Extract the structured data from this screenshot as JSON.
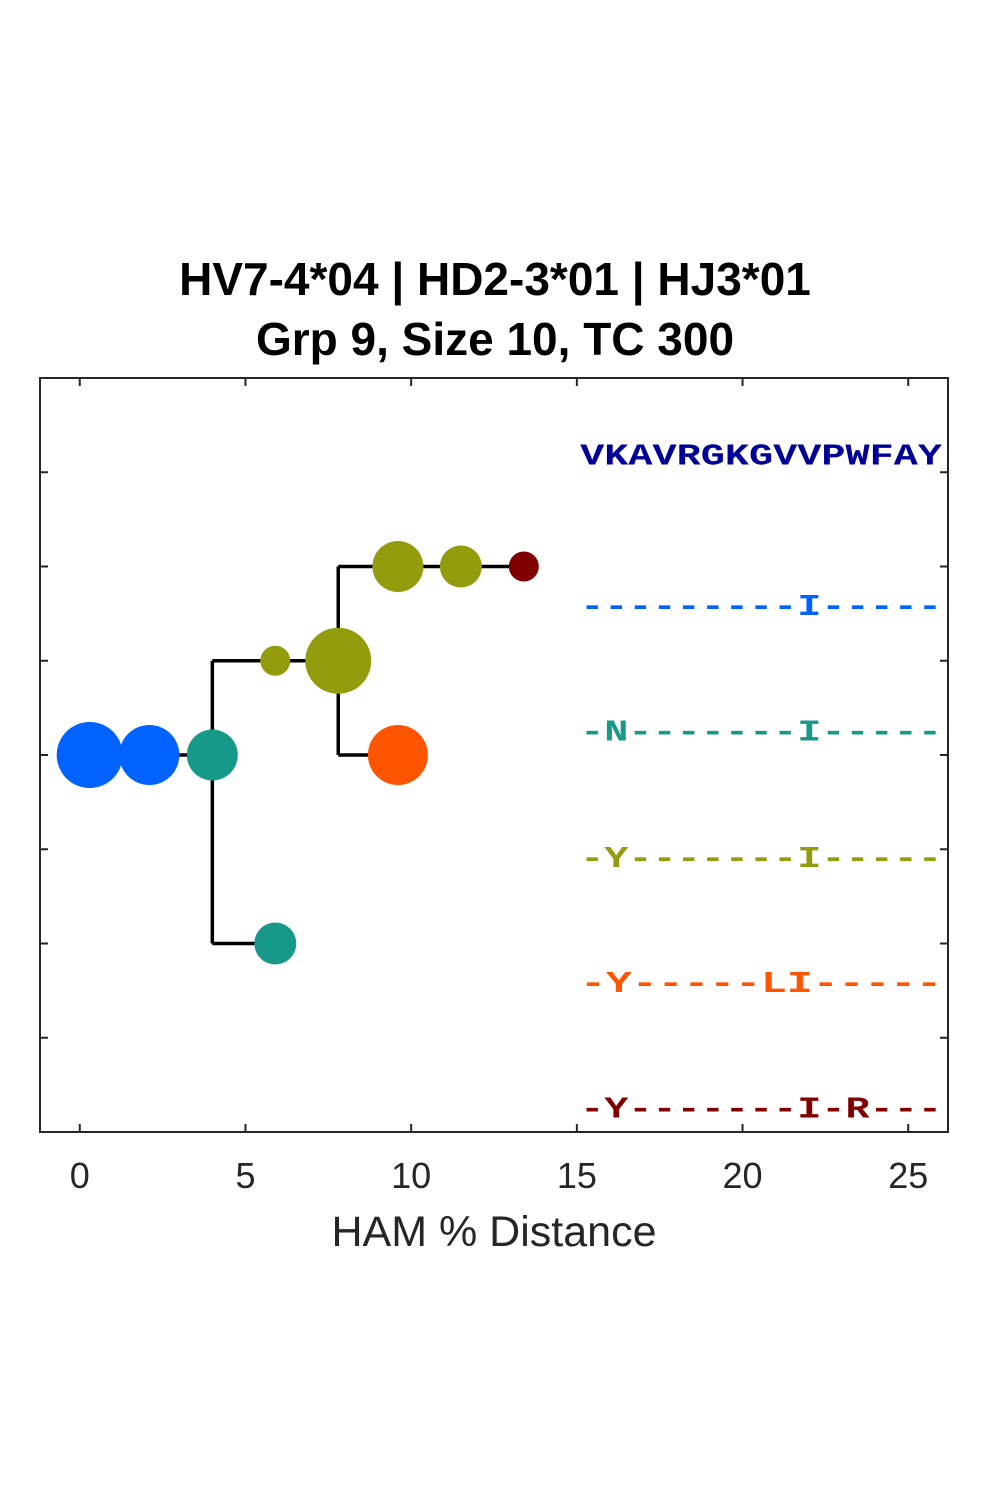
{
  "chart_data": {
    "type": "scatter",
    "title": "HV7-4*04 | HD2-3*01 | HJ3*01",
    "subtitle": "Grp 9, Size 10, TC 300",
    "xlabel": "HAM % Distance",
    "ylabel": "",
    "xlim": [
      -1.2,
      26.2
    ],
    "ylim": [
      0,
      8
    ],
    "xticks": [
      0,
      5,
      10,
      15,
      20,
      25
    ],
    "yticks": [
      1,
      2,
      3,
      4,
      5,
      6,
      7
    ],
    "grid": false,
    "nodes": [
      {
        "x": 0.3,
        "y": 4,
        "size": 2.2,
        "color": "#0063ff"
      },
      {
        "x": 2.1,
        "y": 4,
        "size": 2.0,
        "color": "#0063ff"
      },
      {
        "x": 4.0,
        "y": 4,
        "size": 1.7,
        "color": "#17998a"
      },
      {
        "x": 5.9,
        "y": 2,
        "size": 1.4,
        "color": "#17998a"
      },
      {
        "x": 5.9,
        "y": 5,
        "size": 1.0,
        "color": "#929c0d"
      },
      {
        "x": 7.8,
        "y": 5,
        "size": 2.2,
        "color": "#929c0d"
      },
      {
        "x": 9.6,
        "y": 6,
        "size": 1.7,
        "color": "#929c0d"
      },
      {
        "x": 11.5,
        "y": 6,
        "size": 1.4,
        "color": "#929c0d"
      },
      {
        "x": 13.4,
        "y": 6,
        "size": 1.0,
        "color": "#800000"
      },
      {
        "x": 9.6,
        "y": 4,
        "size": 2.0,
        "color": "#ff5500"
      }
    ],
    "edges": [
      {
        "from": [
          0.3,
          4
        ],
        "to": [
          4.0,
          4
        ]
      },
      {
        "from": [
          4.0,
          4
        ],
        "to": [
          4.0,
          2
        ]
      },
      {
        "from": [
          4.0,
          2
        ],
        "to": [
          5.9,
          2
        ]
      },
      {
        "from": [
          4.0,
          4
        ],
        "to": [
          4.0,
          5
        ]
      },
      {
        "from": [
          4.0,
          5
        ],
        "to": [
          7.8,
          5
        ]
      },
      {
        "from": [
          7.8,
          5
        ],
        "to": [
          7.8,
          6
        ]
      },
      {
        "from": [
          7.8,
          6
        ],
        "to": [
          13.4,
          6
        ]
      },
      {
        "from": [
          7.8,
          5
        ],
        "to": [
          7.8,
          4
        ]
      },
      {
        "from": [
          7.8,
          4
        ],
        "to": [
          9.6,
          4
        ]
      }
    ],
    "sequences": [
      {
        "text": "VKAVRGKGVVPWFAY",
        "color": "#000099",
        "y": 7.2
      },
      {
        "text": "---------I-----",
        "color": "#0063ff",
        "y": 5.6
      },
      {
        "text": "-N-------I-----",
        "color": "#17998a",
        "y": 4.27
      },
      {
        "text": "-Y-------I-----",
        "color": "#929c0d",
        "y": 2.93
      },
      {
        "text": "-Y-----LI-----",
        "color": "#ff5500",
        "y": 1.6
      },
      {
        "text": "-Y-------I-R---",
        "color": "#800000",
        "y": 0.27
      }
    ],
    "seq_x": 15.1
  }
}
